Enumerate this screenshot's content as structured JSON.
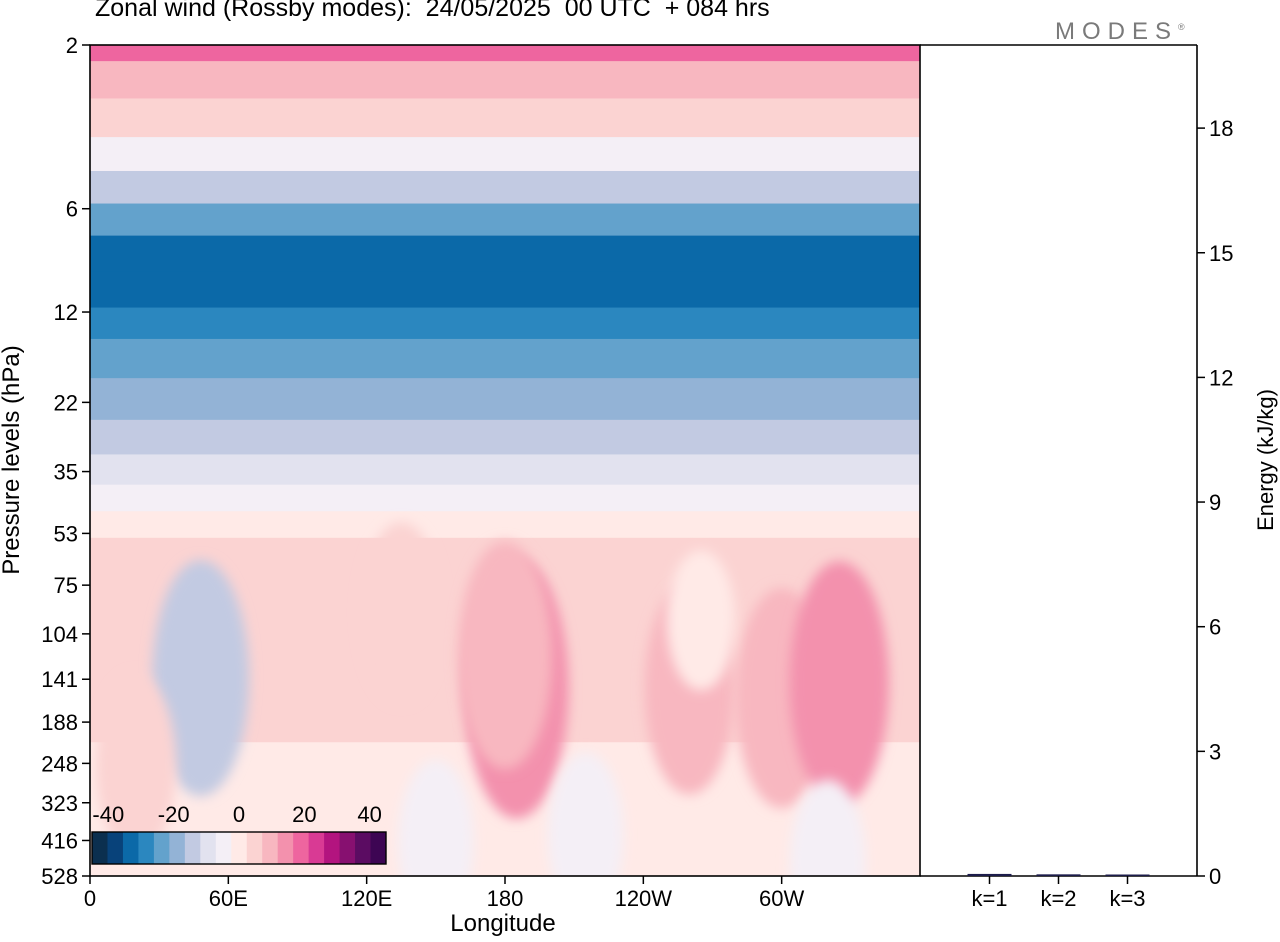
{
  "header": {
    "title": "Zonal wind (Rossby modes):  24/05/2025  00 UTC  + 084 hrs",
    "brand": "MODES",
    "brand_mark": "®"
  },
  "chart_data": [
    {
      "type": "heatmap",
      "title": "Zonal wind (Rossby modes):  24/05/2025  00 UTC  + 084 hrs",
      "xlabel": "Longitude",
      "ylabel": "Pressure levels (hPa)",
      "x_ticks": [
        "0",
        "60E",
        "120E",
        "180",
        "120W",
        "60W"
      ],
      "x_tick_values": [
        0,
        60,
        120,
        180,
        240,
        300
      ],
      "xlim": [
        0,
        360
      ],
      "y_ticks": [
        "2",
        "6",
        "12",
        "22",
        "35",
        "53",
        "75",
        "104",
        "141",
        "188",
        "248",
        "323",
        "416",
        "528"
      ],
      "y_tick_values": [
        2,
        6,
        12,
        22,
        35,
        53,
        75,
        104,
        141,
        188,
        248,
        323,
        416,
        528
      ],
      "ylim": [
        2,
        528
      ],
      "colorbar": {
        "tick_labels": [
          "-40",
          "-20",
          "0",
          "20",
          "40"
        ],
        "tick_values": [
          -40,
          -20,
          0,
          20,
          40
        ],
        "range": [
          -45,
          45
        ],
        "colors": [
          "#0b2f4f",
          "#08427a",
          "#0b69a8",
          "#2b87bf",
          "#63a2cc",
          "#93b3d6",
          "#c2cae2",
          "#e2e2ef",
          "#f4eff6",
          "#ffeae7",
          "#fbd3d2",
          "#f8b7c0",
          "#f391ad",
          "#ee659f",
          "#d93a94",
          "#b3147f",
          "#871070",
          "#5b0c62",
          "#3d0553"
        ]
      },
      "bands": [
        {
          "p": 2,
          "u": 18
        },
        {
          "p": 2.5,
          "u": 9
        },
        {
          "p": 3.3,
          "u": 4
        },
        {
          "p": 4.2,
          "u": -3
        },
        {
          "p": 5.2,
          "u": -12
        },
        {
          "p": 6.5,
          "u": -24
        },
        {
          "p": 8,
          "u": -31
        },
        {
          "p": 10.5,
          "u": -32
        },
        {
          "p": 13,
          "u": -27
        },
        {
          "p": 16,
          "u": -22
        },
        {
          "p": 22,
          "u": -20
        },
        {
          "p": 28,
          "u": -14
        },
        {
          "p": 35,
          "u": -9
        },
        {
          "p": 42,
          "u": -3
        },
        {
          "p": 50,
          "u": 1
        },
        {
          "p": 60,
          "u": 3
        },
        {
          "p": 75,
          "u": 5
        },
        {
          "p": 104,
          "u": 5
        },
        {
          "p": 141,
          "u": 4
        },
        {
          "p": 188,
          "u": 3
        },
        {
          "p": 248,
          "u": 2
        },
        {
          "p": 323,
          "u": 1
        },
        {
          "p": 416,
          "u": 0
        },
        {
          "p": 528,
          "u": -1
        }
      ],
      "features": [
        {
          "lon": 48,
          "p": 140,
          "u": -12
        },
        {
          "lon": 185,
          "p": 150,
          "u": 15
        },
        {
          "lon": 180,
          "p": 120,
          "u": 11
        },
        {
          "lon": 260,
          "p": 150,
          "u": 9
        },
        {
          "lon": 300,
          "p": 160,
          "u": 10
        },
        {
          "lon": 325,
          "p": 145,
          "u": 13
        },
        {
          "lon": 135,
          "p": 90,
          "u": 5
        },
        {
          "lon": 20,
          "p": 250,
          "u": 5
        },
        {
          "lon": 150,
          "p": 420,
          "u": -3
        },
        {
          "lon": 215,
          "p": 400,
          "u": -3
        },
        {
          "lon": 320,
          "p": 480,
          "u": -3
        },
        {
          "lon": 265,
          "p": 95,
          "u": 0
        }
      ]
    },
    {
      "type": "bar",
      "categories": [
        "k=1",
        "k=2",
        "k=3"
      ],
      "values": [
        0.05,
        0.04,
        0.03
      ],
      "ylabel": "Energy (kJ/kg)",
      "ylim": [
        0,
        20
      ],
      "y_ticks": [
        "0",
        "3",
        "6",
        "9",
        "12",
        "15",
        "18"
      ],
      "y_tick_values": [
        0,
        3,
        6,
        9,
        12,
        15,
        18
      ]
    }
  ]
}
